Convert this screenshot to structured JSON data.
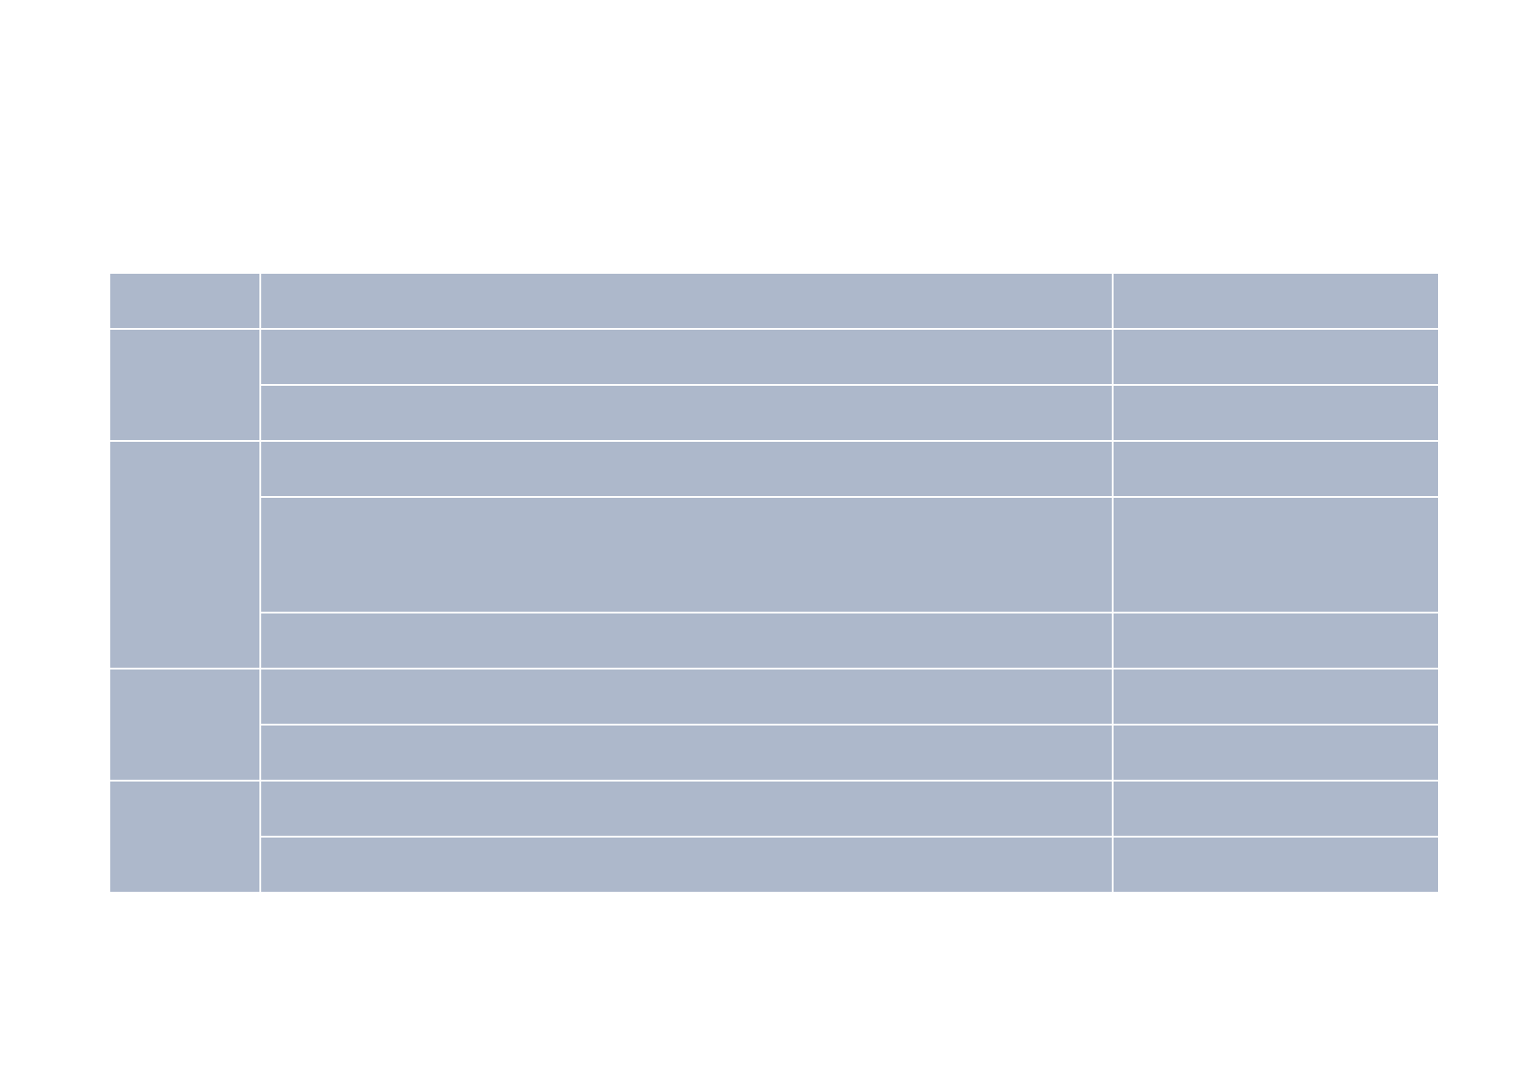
{
  "table": {
    "cell_color": "#adb8cb",
    "groups": [
      {
        "rows": 1,
        "row_heights_lines": [
          1
        ]
      },
      {
        "rows": 2,
        "row_heights_lines": [
          1,
          1
        ]
      },
      {
        "rows": 3,
        "row_heights_lines": [
          1,
          2,
          1
        ]
      },
      {
        "rows": 2,
        "row_heights_lines": [
          1,
          1
        ]
      },
      {
        "rows": 2,
        "row_heights_lines": [
          1,
          1
        ]
      }
    ]
  }
}
